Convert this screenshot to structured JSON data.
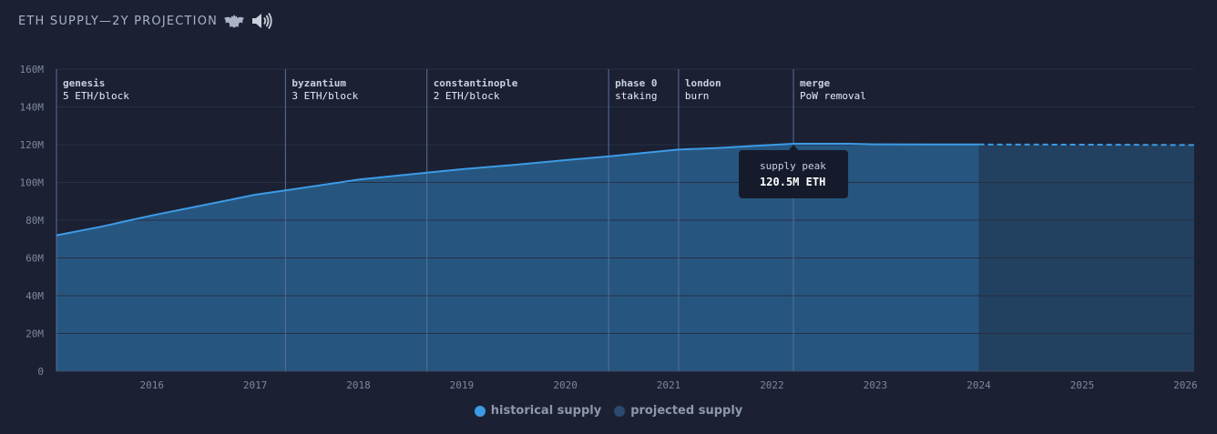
{
  "header": {
    "title": "ETH SUPPLY—2Y PROJECTION",
    "icons": [
      "bat-icon",
      "speaker-icon"
    ]
  },
  "colors": {
    "background": "#1b2133",
    "historical_line": "#3d9be6",
    "historical_fill": "#26567f",
    "projected_fill": "#22405f",
    "projected_line": "#3d9be6",
    "grid": "#262f45",
    "event_line": "#5a6f9a",
    "tooltip_bg": "#161b2b"
  },
  "chart_data": {
    "type": "area",
    "title": "ETH SUPPLY—2Y PROJECTION",
    "xlabel": "",
    "ylabel": "",
    "xlim": [
      "2015-07-30",
      "2026-08-01"
    ],
    "ylim": [
      0,
      160
    ],
    "y_unit": "M",
    "y_ticks": [
      "0",
      "20M",
      "40M",
      "60M",
      "80M",
      "100M",
      "120M",
      "140M",
      "160M"
    ],
    "x_ticks": [
      "2016",
      "2017",
      "2018",
      "2019",
      "2020",
      "2021",
      "2022",
      "2023",
      "2024",
      "2025",
      "2026"
    ],
    "grid": true,
    "legend_position": "bottom-center",
    "series": [
      {
        "name": "historical supply",
        "style": "solid",
        "points": [
          {
            "x": "2015-07-30",
            "y": 72.0
          },
          {
            "x": "2016-01-01",
            "y": 76.5
          },
          {
            "x": "2016-07-01",
            "y": 82.5
          },
          {
            "x": "2017-01-01",
            "y": 88.0
          },
          {
            "x": "2017-07-01",
            "y": 93.5
          },
          {
            "x": "2017-10-16",
            "y": 95.8
          },
          {
            "x": "2018-01-01",
            "y": 97.5
          },
          {
            "x": "2018-07-01",
            "y": 101.5
          },
          {
            "x": "2019-02-28",
            "y": 105.2
          },
          {
            "x": "2019-07-01",
            "y": 107.0
          },
          {
            "x": "2020-01-01",
            "y": 109.3
          },
          {
            "x": "2020-07-01",
            "y": 111.8
          },
          {
            "x": "2020-12-01",
            "y": 113.8
          },
          {
            "x": "2021-05-01",
            "y": 116.0
          },
          {
            "x": "2021-08-05",
            "y": 117.4
          },
          {
            "x": "2022-01-01",
            "y": 118.3
          },
          {
            "x": "2022-06-01",
            "y": 119.6
          },
          {
            "x": "2022-09-15",
            "y": 120.5
          },
          {
            "x": "2023-04-01",
            "y": 120.5
          },
          {
            "x": "2023-07-01",
            "y": 120.2
          },
          {
            "x": "2024-07-01",
            "y": 120.1
          }
        ]
      },
      {
        "name": "projected supply",
        "style": "dashed",
        "points": [
          {
            "x": "2024-07-01",
            "y": 120.1
          },
          {
            "x": "2025-07-01",
            "y": 120.0
          },
          {
            "x": "2026-08-01",
            "y": 119.8
          }
        ]
      }
    ],
    "events": [
      {
        "date": "2015-07-30",
        "name": "genesis",
        "detail": "5 ETH/block"
      },
      {
        "date": "2017-10-16",
        "name": "byzantium",
        "detail": "3 ETH/block"
      },
      {
        "date": "2019-02-28",
        "name": "constantinople",
        "detail": "2 ETH/block"
      },
      {
        "date": "2020-12-01",
        "name": "phase 0",
        "detail": "staking"
      },
      {
        "date": "2021-08-05",
        "name": "london",
        "detail": "burn"
      },
      {
        "date": "2022-09-15",
        "name": "merge",
        "detail": "PoW removal"
      }
    ],
    "annotations": [
      {
        "date": "2022-09-15",
        "label": "supply peak",
        "value_text": "120.5M ETH",
        "value": 120.5
      }
    ]
  },
  "legend": {
    "items": [
      {
        "label": "historical supply",
        "color": "#3d9be6"
      },
      {
        "label": "projected supply",
        "color": "#2a4a6e"
      }
    ]
  }
}
